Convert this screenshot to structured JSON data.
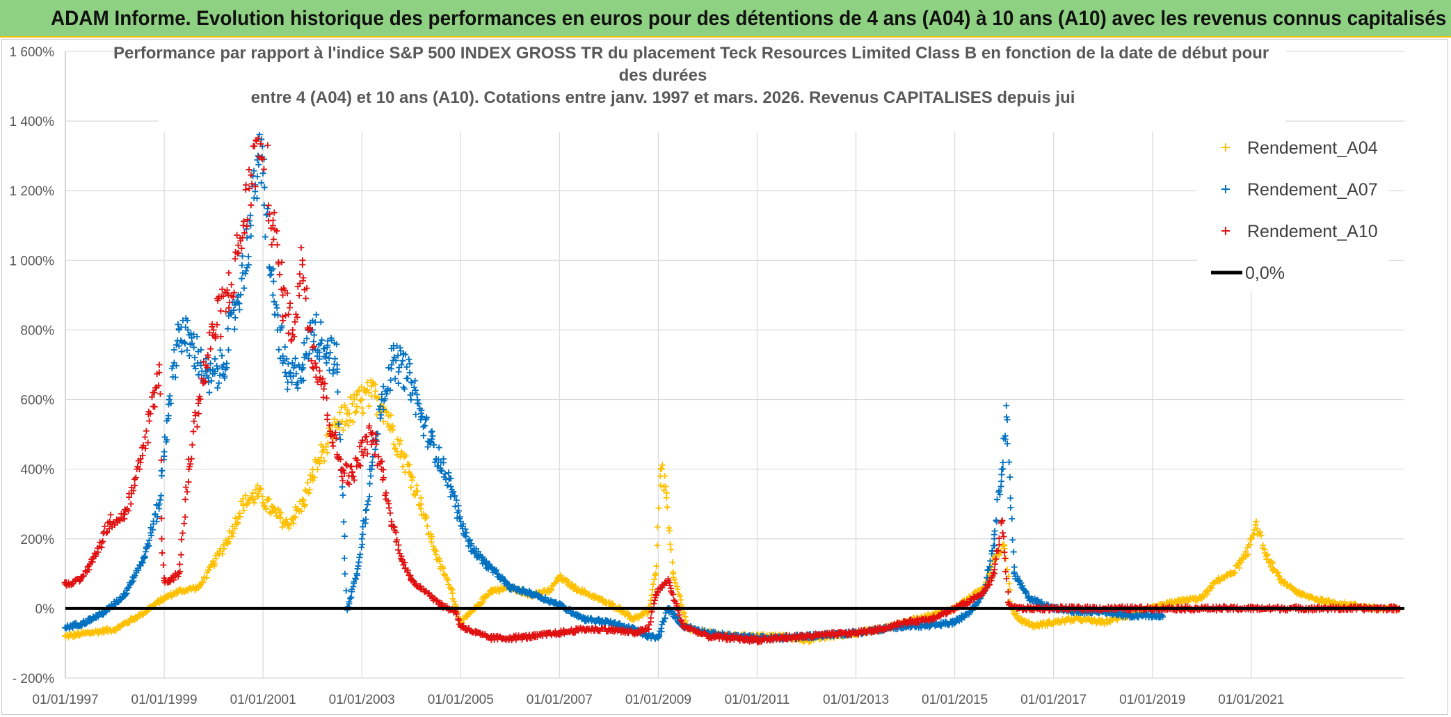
{
  "banner": {
    "title": "ADAM Informe. Evolution historique des performances en euros pour des détentions de 4 ans (A04) à 10 ans (A10) avec les revenus connus capitalisés"
  },
  "chart_data": {
    "type": "scatter",
    "title_lines": [
      "Performance par rapport à l'indice S&P 500 INDEX GROSS TR  du placement Teck Resources Limited Class B en fonction de la date de début pour",
      "des durées",
      "entre 4 (A04) et 10 ans (A10). Cotations entre janv. 1997 et mars. 2026. Revenus CAPITALISES depuis jui"
    ],
    "xlabel": "",
    "ylabel": "",
    "x_range": [
      1997.0,
      2024.1
    ],
    "ylim": [
      -200,
      1600
    ],
    "y_ticks": [
      -200,
      0,
      200,
      400,
      600,
      800,
      1000,
      1200,
      1400,
      1600
    ],
    "y_tick_labels": [
      "- 200%",
      "0%",
      "200%",
      "400%",
      "600%",
      "800%",
      "1 000%",
      "1 200%",
      "1 400%",
      "1 600%"
    ],
    "x_ticks": [
      1997,
      1999,
      2001,
      2003,
      2005,
      2007,
      2009,
      2011,
      2013,
      2015,
      2017,
      2019,
      2021
    ],
    "x_tick_labels": [
      "01/01/1997",
      "01/01/1999",
      "01/01/2001",
      "01/01/2003",
      "01/01/2005",
      "01/01/2007",
      "01/01/2009",
      "01/01/2011",
      "01/01/2013",
      "01/01/2015",
      "01/01/2017",
      "01/01/2019",
      "01/01/2021"
    ],
    "grid": true,
    "legend_position": "top-right",
    "series": [
      {
        "name": "Rendement_A04",
        "color": "#ffc000",
        "marker": "+",
        "x": [
          1997.0,
          1997.5,
          1998.0,
          1998.5,
          1998.8,
          1999.0,
          1999.3,
          1999.7,
          2000.0,
          2000.3,
          2000.6,
          2000.9,
          2001.2,
          2001.5,
          2001.8,
          2002.0,
          2002.2,
          2002.5,
          2002.7,
          2002.9,
          2003.0,
          2003.2,
          2003.4,
          2003.6,
          2003.8,
          2004.0,
          2004.2,
          2004.4,
          2004.6,
          2004.8,
          2005.0,
          2005.3,
          2005.6,
          2006.0,
          2006.4,
          2006.8,
          2007.0,
          2007.3,
          2007.6,
          2007.9,
          2008.2,
          2008.5,
          2008.8,
          2008.95,
          2009.05,
          2009.15,
          2009.3,
          2009.6,
          2010.0,
          2010.5,
          2011.0,
          2011.5,
          2012.0,
          2012.5,
          2013.0,
          2013.5,
          2014.0,
          2014.5,
          2015.0,
          2015.3,
          2015.6,
          2015.8,
          2016.0,
          2016.15,
          2016.3,
          2016.6,
          2017.0,
          2017.5,
          2018.0,
          2018.5,
          2019.0,
          2019.5,
          2020.0,
          2020.3,
          2020.6,
          2020.9,
          2021.1,
          2021.3,
          2021.6,
          2022.0,
          2022.5,
          2023.0,
          2023.5,
          2024.0
        ],
        "y": [
          -80,
          -70,
          -60,
          -20,
          10,
          30,
          50,
          60,
          130,
          200,
          300,
          330,
          280,
          240,
          300,
          380,
          450,
          520,
          560,
          580,
          600,
          610,
          600,
          520,
          450,
          380,
          300,
          200,
          120,
          60,
          -40,
          0,
          50,
          60,
          40,
          50,
          90,
          60,
          40,
          20,
          0,
          -30,
          -10,
          100,
          400,
          350,
          100,
          -60,
          -70,
          -80,
          -80,
          -80,
          -90,
          -80,
          -70,
          -60,
          -40,
          -20,
          0,
          30,
          60,
          150,
          180,
          0,
          -30,
          -50,
          -40,
          -30,
          -40,
          -20,
          0,
          20,
          30,
          80,
          100,
          150,
          250,
          150,
          80,
          40,
          20,
          10,
          0,
          0
        ]
      },
      {
        "name": "Rendement_A07",
        "color": "#0070c0",
        "marker": "+",
        "x": [
          1997.0,
          1997.4,
          1997.8,
          1998.2,
          1998.6,
          1998.9,
          1999.0,
          1999.1,
          1999.3,
          1999.6,
          1999.9,
          2000.2,
          2000.5,
          2000.75,
          2000.9,
          2001.0,
          2001.2,
          2001.5,
          2001.8,
          2002.0,
          2002.3,
          2002.5,
          2002.7,
          2002.9,
          2003.0,
          2003.2,
          2003.4,
          2003.6,
          2003.8,
          2004.0,
          2004.2,
          2004.4,
          2004.6,
          2004.8,
          2005.0,
          2005.2,
          2005.5,
          2005.8,
          2006.0,
          2006.5,
          2007.0,
          2007.5,
          2008.0,
          2008.5,
          2008.8,
          2009.0,
          2009.2,
          2009.5,
          2010.0,
          2010.5,
          2011.0,
          2011.5,
          2012.0,
          2012.5,
          2013.0,
          2013.5,
          2014.0,
          2014.5,
          2015.0,
          2015.3,
          2015.6,
          2015.8,
          2015.95,
          2016.05,
          2016.2,
          2016.5,
          2017.0,
          2017.5,
          2018.0,
          2018.5,
          2019.0,
          2019.2
        ],
        "y": [
          -55,
          -40,
          -10,
          40,
          150,
          300,
          450,
          600,
          800,
          750,
          650,
          700,
          900,
          1100,
          1300,
          1250,
          900,
          650,
          700,
          800,
          750,
          700,
          0,
          100,
          200,
          400,
          600,
          700,
          700,
          650,
          550,
          480,
          420,
          350,
          250,
          180,
          130,
          90,
          60,
          40,
          10,
          -30,
          -40,
          -60,
          -80,
          -85,
          0,
          -50,
          -70,
          -80,
          -85,
          -85,
          -80,
          -75,
          -70,
          -60,
          -50,
          -50,
          -40,
          -10,
          50,
          200,
          400,
          550,
          100,
          30,
          0,
          -10,
          -10,
          -20,
          -20,
          -20
        ]
      },
      {
        "name": "Rendement_A10",
        "color": "#e01010",
        "marker": "+",
        "x": [
          1997.0,
          1997.3,
          1997.6,
          1997.9,
          1998.2,
          1998.5,
          1998.8,
          1998.9,
          1998.95,
          1999.0,
          1999.1,
          1999.3,
          1999.5,
          1999.7,
          2000.0,
          2000.3,
          2000.6,
          2000.9,
          2001.0,
          2001.2,
          2001.4,
          2001.6,
          2001.8,
          2002.0,
          2002.2,
          2002.4,
          2002.6,
          2002.8,
          2003.0,
          2003.2,
          2003.4,
          2003.6,
          2003.8,
          2004.0,
          2004.3,
          2004.6,
          2004.9,
          2005.0,
          2005.3,
          2005.6,
          2006.0,
          2006.5,
          2007.0,
          2007.5,
          2008.0,
          2008.5,
          2008.8,
          2008.95,
          2009.05,
          2009.2,
          2009.5,
          2010.0,
          2010.5,
          2011.0,
          2011.5,
          2012.0,
          2012.5,
          2013.0,
          2013.5,
          2014.0,
          2014.5,
          2015.0,
          2015.3,
          2015.6,
          2015.8,
          2015.95,
          2016.1,
          2016.3,
          2017.0,
          2018.0,
          2019.0,
          2020.0,
          2021.0,
          2022.0,
          2023.0,
          2024.0
        ],
        "y": [
          70,
          80,
          150,
          250,
          270,
          400,
          620,
          700,
          200,
          80,
          80,
          100,
          400,
          600,
          800,
          900,
          1100,
          1350,
          1380,
          1100,
          900,
          800,
          1000,
          750,
          650,
          500,
          400,
          380,
          450,
          500,
          400,
          250,
          150,
          80,
          50,
          10,
          -10,
          -50,
          -70,
          -85,
          -85,
          -80,
          -70,
          -60,
          -60,
          -70,
          -60,
          40,
          60,
          80,
          -50,
          -80,
          -85,
          -90,
          -85,
          -80,
          -75,
          -70,
          -60,
          -40,
          -30,
          0,
          20,
          50,
          100,
          250,
          10,
          0,
          0,
          0,
          0,
          0,
          0,
          0,
          0,
          0
        ]
      },
      {
        "name": "0,0%",
        "color": "#000000",
        "type": "line",
        "x": [
          1997.0,
          2024.1
        ],
        "y": [
          0,
          0
        ]
      }
    ]
  }
}
